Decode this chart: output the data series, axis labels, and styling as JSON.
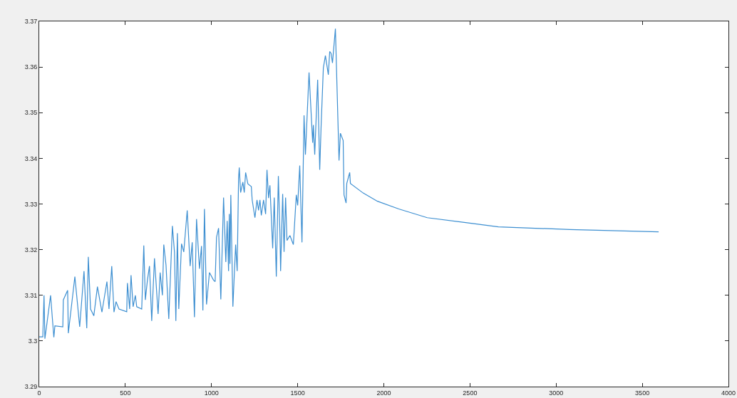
{
  "chart_data": {
    "type": "line",
    "color": "#3d8fd1",
    "grid": false,
    "marker": "none",
    "line_style": "solid",
    "xlim": [
      0,
      4000
    ],
    "xticks": [
      0,
      500,
      1000,
      1500,
      2000,
      2500,
      3000,
      3500,
      4000
    ],
    "ylim": [
      3.29,
      3.37
    ],
    "yticks": [
      3.29,
      3.3,
      3.31,
      3.32,
      3.33,
      3.34,
      3.35,
      3.36,
      3.37
    ],
    "x": [
      0,
      21,
      28,
      33,
      45,
      66,
      85,
      91,
      137,
      140,
      165,
      169,
      207,
      235,
      260,
      276,
      285,
      298,
      317,
      338,
      364,
      393,
      405,
      421,
      434,
      446,
      463,
      508,
      512,
      525,
      533,
      545,
      558,
      566,
      595,
      607,
      616,
      628,
      640,
      653,
      669,
      690,
      702,
      715,
      723,
      736,
      752,
      773,
      785,
      793,
      802,
      810,
      826,
      839,
      859,
      876,
      888,
      901,
      913,
      930,
      942,
      950,
      959,
      971,
      988,
      1012,
      1021,
      1029,
      1041,
      1054,
      1070,
      1083,
      1091,
      1099,
      1103,
      1107,
      1112,
      1124,
      1140,
      1149,
      1157,
      1161,
      1169,
      1182,
      1190,
      1198,
      1211,
      1231,
      1236,
      1252,
      1264,
      1273,
      1281,
      1289,
      1302,
      1314,
      1322,
      1331,
      1339,
      1355,
      1364,
      1376,
      1388,
      1397,
      1401,
      1413,
      1421,
      1430,
      1438,
      1455,
      1475,
      1492,
      1500,
      1512,
      1525,
      1537,
      1545,
      1566,
      1587,
      1591,
      1599,
      1616,
      1628,
      1636,
      1649,
      1661,
      1678,
      1686,
      1694,
      1702,
      1719,
      1740,
      1748,
      1764,
      1769,
      1781,
      1785,
      1802,
      1806,
      1880,
      1963,
      2087,
      2252,
      2459,
      2665,
      3079,
      3595
    ],
    "values": [
      3.3009,
      3.3009,
      3.31,
      3.3005,
      3.3039,
      3.31,
      3.3008,
      3.3033,
      3.3031,
      3.309,
      3.3111,
      3.3017,
      3.3141,
      3.3031,
      3.3153,
      3.3028,
      3.3184,
      3.307,
      3.3055,
      3.3119,
      3.3063,
      3.313,
      3.307,
      3.3164,
      3.3063,
      3.3086,
      3.307,
      3.3064,
      3.3127,
      3.307,
      3.3144,
      3.3075,
      3.31,
      3.3075,
      3.307,
      3.3209,
      3.309,
      3.3133,
      3.3164,
      3.3044,
      3.3181,
      3.3059,
      3.315,
      3.31,
      3.3211,
      3.3166,
      3.3048,
      3.3252,
      3.3195,
      3.3044,
      3.3236,
      3.307,
      3.3213,
      3.3195,
      3.3286,
      3.3164,
      3.3216,
      3.3052,
      3.3267,
      3.3158,
      3.3208,
      3.3067,
      3.3289,
      3.308,
      3.315,
      3.3133,
      3.313,
      3.3227,
      3.3247,
      3.3091,
      3.3314,
      3.3173,
      3.3263,
      3.3153,
      3.3278,
      3.3169,
      3.332,
      3.3075,
      3.3211,
      3.3153,
      3.3356,
      3.338,
      3.3325,
      3.3348,
      3.3325,
      3.3369,
      3.3344,
      3.3338,
      3.3309,
      3.327,
      3.3309,
      3.3286,
      3.3309,
      3.3275,
      3.3309,
      3.3278,
      3.3375,
      3.3313,
      3.3341,
      3.3203,
      3.3314,
      3.3141,
      3.3361,
      3.3236,
      3.3153,
      3.3322,
      3.3195,
      3.3314,
      3.322,
      3.3231,
      3.3211,
      3.332,
      3.3297,
      3.3384,
      3.3216,
      3.3494,
      3.3408,
      3.3588,
      3.3434,
      3.3473,
      3.3408,
      3.3572,
      3.3375,
      3.347,
      3.3598,
      3.3625,
      3.3583,
      3.3634,
      3.363,
      3.3609,
      3.3684,
      3.3395,
      3.3455,
      3.3439,
      3.332,
      3.3302,
      3.3345,
      3.3369,
      3.3345,
      3.3324,
      3.3306,
      3.3289,
      3.327,
      3.326,
      3.325,
      3.3244,
      3.3239
    ]
  }
}
